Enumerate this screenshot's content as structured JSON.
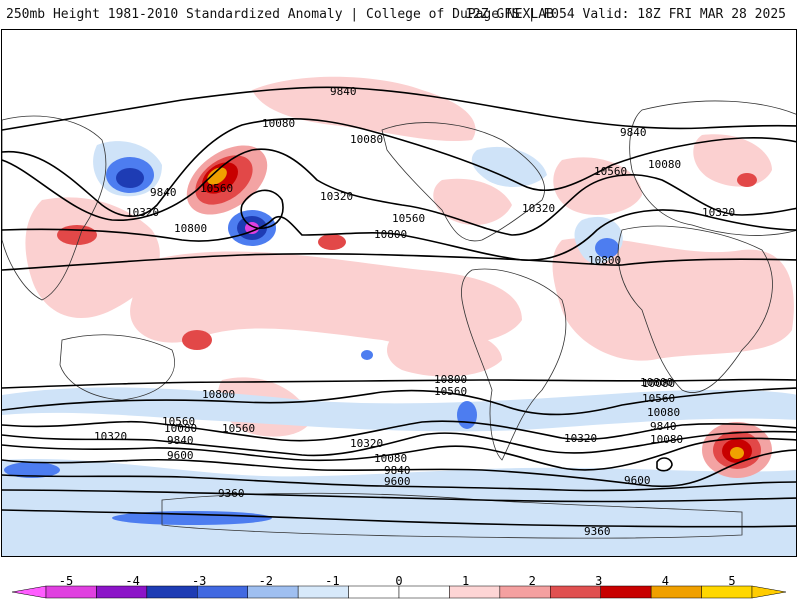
{
  "header": {
    "title_left": "250mb Height 1981-2010 Standardized Anomaly | College of DuPage NEXLAB",
    "title_right": "12Z GFS | F054 Valid: 18Z FRI MAR 28 2025"
  },
  "contour_labels": [
    {
      "text": "9840"
    },
    {
      "text": "10080"
    },
    {
      "text": "10080"
    },
    {
      "text": "9840"
    },
    {
      "text": "10080"
    },
    {
      "text": "9840"
    },
    {
      "text": "10560"
    },
    {
      "text": "10320"
    },
    {
      "text": "10320"
    },
    {
      "text": "10560"
    },
    {
      "text": "10320"
    },
    {
      "text": "10560"
    },
    {
      "text": "10320"
    },
    {
      "text": "10800"
    },
    {
      "text": "10800"
    },
    {
      "text": "10800"
    },
    {
      "text": "10800"
    },
    {
      "text": "10560"
    },
    {
      "text": "10800"
    },
    {
      "text": "10560"
    },
    {
      "text": "10320"
    },
    {
      "text": "10080"
    },
    {
      "text": "9840"
    },
    {
      "text": "9600"
    },
    {
      "text": "10080"
    },
    {
      "text": "10560"
    },
    {
      "text": "10320"
    },
    {
      "text": "10080"
    },
    {
      "text": "9840"
    },
    {
      "text": "9600"
    },
    {
      "text": "10080"
    },
    {
      "text": "10320"
    },
    {
      "text": "9840"
    },
    {
      "text": "9600"
    },
    {
      "text": "9360"
    },
    {
      "text": "9360"
    },
    {
      "text": "10800"
    },
    {
      "text": "10560"
    },
    {
      "text": "10080"
    }
  ],
  "colorbar": {
    "labels": [
      "-5",
      "-4",
      "-3",
      "-2",
      "-1",
      "0",
      "1",
      "2",
      "3",
      "4",
      "5"
    ],
    "colors": [
      "#e040e0",
      "#8c14c8",
      "#1e3cb4",
      "#4169e1",
      "#9fbff0",
      "#d7e9fa",
      "#ffffff",
      "#ffffff",
      "#fdd5d5",
      "#f4a0a0",
      "#e05050",
      "#c80000",
      "#f0a000",
      "#ffd700"
    ],
    "left_arrow_color": "#ff5cff",
    "right_arrow_color": "#ffcc00"
  },
  "colors": {
    "land_outline": "#333333",
    "contour": "#000000",
    "anomaly_neg1": "#cfe3f8",
    "anomaly_neg2": "#4d7df0",
    "anomaly_neg3": "#1e3cb4",
    "anomaly_pos1": "#fbd0d0",
    "anomaly_pos2": "#f3a3a3",
    "anomaly_pos3": "#e24848",
    "anomaly_pos4": "#c80000",
    "anomaly_pos5": "#f0a000"
  }
}
